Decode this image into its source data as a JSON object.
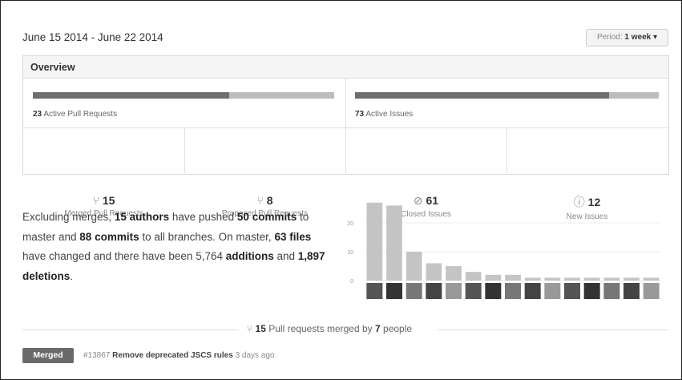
{
  "header": {
    "date_range": "June 15 2014 - June 22 2014",
    "period_label": "Period:",
    "period_value": "1 week"
  },
  "overview": {
    "title": "Overview",
    "pull_requests": {
      "active": 23,
      "active_label": "Active Pull Requests",
      "merged": 15,
      "merged_label": "Merged Pull Requests",
      "proposed": 8,
      "proposed_label": "Proposed Pull Requests"
    },
    "issues": {
      "active": 73,
      "active_label": "Active Issues",
      "closed": 61,
      "closed_label": "Closed Issues",
      "new": 12,
      "new_label": "New Issues"
    }
  },
  "summary": [
    "Excluding merges, ",
    "15 authors",
    " have pushed ",
    "50 commits",
    " to master and ",
    "88 commits",
    " to all branches. On master, ",
    "63 files",
    " have changed and there have been ",
    "5,764",
    " additions",
    " and ",
    "1,897 deletions",
    "."
  ],
  "chart_data": {
    "type": "bar",
    "values": [
      27,
      26,
      10,
      6,
      5,
      3,
      2,
      2,
      1,
      1,
      1,
      1,
      1,
      1,
      1
    ],
    "color": "#c4c4c4",
    "ylim": [
      0,
      30
    ],
    "yticks": [
      0,
      10,
      20
    ],
    "grid": true
  },
  "merged_footer": {
    "count": 15,
    "text": "Pull requests merged by",
    "people": 7,
    "people_label": "people"
  },
  "pull_requests": [
    {
      "status": "Merged",
      "number": "#13867",
      "title": "Remove deprecated JSCS rules",
      "age": "3 days ago"
    }
  ]
}
